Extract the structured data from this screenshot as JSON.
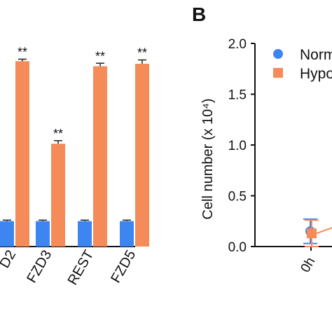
{
  "colors": {
    "normoxia": "#3d85f0",
    "hypoxia": "#f48b58",
    "axis": "#111111",
    "error": "#222222"
  },
  "chart_data": [
    {
      "type": "bar",
      "panel_label": "",
      "title": "",
      "xlabel": "",
      "ylabel": "",
      "categories": [
        "D2",
        "FZD3",
        "REST",
        "FZD5"
      ],
      "series": [
        {
          "name": "",
          "values": [
            1.0,
            1.0,
            1.0,
            1.0
          ],
          "errors": [
            0.04,
            0.04,
            0.04,
            0.04
          ]
        },
        {
          "name": "",
          "values": [
            7.3,
            4.05,
            7.1,
            7.2
          ],
          "errors": [
            0.08,
            0.12,
            0.12,
            0.15
          ]
        }
      ],
      "significance": [
        "**",
        "**",
        "**",
        "**"
      ],
      "ylim": [
        0,
        8
      ]
    },
    {
      "type": "scatter",
      "panel_label": "B",
      "title": "",
      "xlabel": "",
      "ylabel": "Cell number (x 10⁴)",
      "categories": [
        "0h"
      ],
      "ylim": [
        0,
        2.0
      ],
      "yticks": [
        "0.0",
        "0.5",
        "1.0",
        "1.5",
        "2.0"
      ],
      "series": [
        {
          "name": "Norm",
          "values": [
            0.15
          ],
          "errors": [
            0.12
          ]
        },
        {
          "name": "Hypo",
          "values": [
            0.13
          ],
          "errors": [
            0.13
          ]
        }
      ]
    }
  ]
}
